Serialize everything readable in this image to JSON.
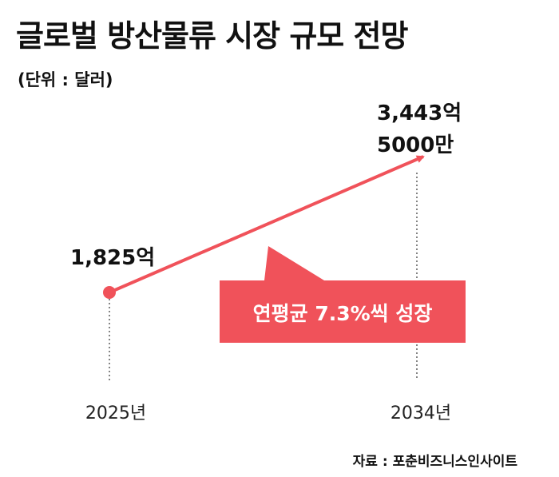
{
  "title": "글로벌 방산물류 시장 규모 전망",
  "unit": "(단위 : 달러)",
  "callout": "연평균 7.3%씩 성장",
  "source": "자료 : 포춘비즈니스인사이트",
  "colors": {
    "accent": "#f0525a",
    "text": "#111111",
    "callout_text": "#ffffff"
  },
  "chart_data": {
    "type": "line",
    "x": [
      "2025년",
      "2034년"
    ],
    "values": [
      1825,
      3443.5
    ],
    "value_unit": "억 달러",
    "data_labels": [
      "1,825억",
      "3,443억\n5000만"
    ],
    "annotation": "연평균 7.3%씩 성장",
    "grid": false,
    "legend": "none"
  }
}
